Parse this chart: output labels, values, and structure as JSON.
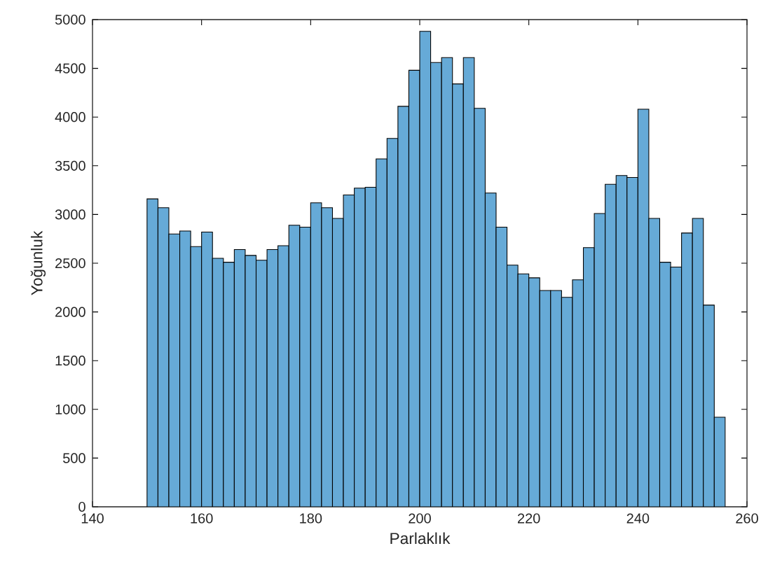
{
  "chart_data": {
    "type": "histogram",
    "xlabel": "Parlaklık",
    "ylabel": "Yoğunluk",
    "color": "#66aad7",
    "bins": [
      150,
      152,
      154,
      156,
      158,
      160,
      162,
      164,
      166,
      168,
      170,
      172,
      174,
      176,
      178,
      180,
      182,
      184,
      186,
      188,
      190,
      192,
      194,
      196,
      198,
      200,
      202,
      204,
      206,
      208,
      210,
      212,
      214,
      216,
      218,
      220,
      222,
      224,
      226,
      228,
      230,
      232,
      234,
      236,
      238,
      240,
      242,
      244,
      246,
      248,
      250,
      252,
      254,
      256
    ],
    "values": [
      3160,
      3070,
      2800,
      2830,
      2670,
      2820,
      2550,
      2510,
      2640,
      2580,
      2530,
      2640,
      2680,
      2890,
      2870,
      3120,
      3070,
      2960,
      3200,
      3270,
      3280,
      3570,
      3780,
      4110,
      4480,
      4880,
      4560,
      4610,
      4340,
      4610,
      4090,
      3220,
      2870,
      2480,
      2390,
      2350,
      2220,
      2220,
      2150,
      2330,
      2660,
      3010,
      3310,
      3400,
      3380,
      4080,
      2960,
      2510,
      2460,
      2810,
      2960,
      2070,
      920
    ],
    "xlim": [
      140,
      260
    ],
    "ylim": [
      0,
      5000
    ],
    "xticks": [
      140,
      160,
      180,
      200,
      220,
      240,
      260
    ],
    "yticks": [
      0,
      500,
      1000,
      1500,
      2000,
      2500,
      3000,
      3500,
      4000,
      4500,
      5000
    ]
  }
}
